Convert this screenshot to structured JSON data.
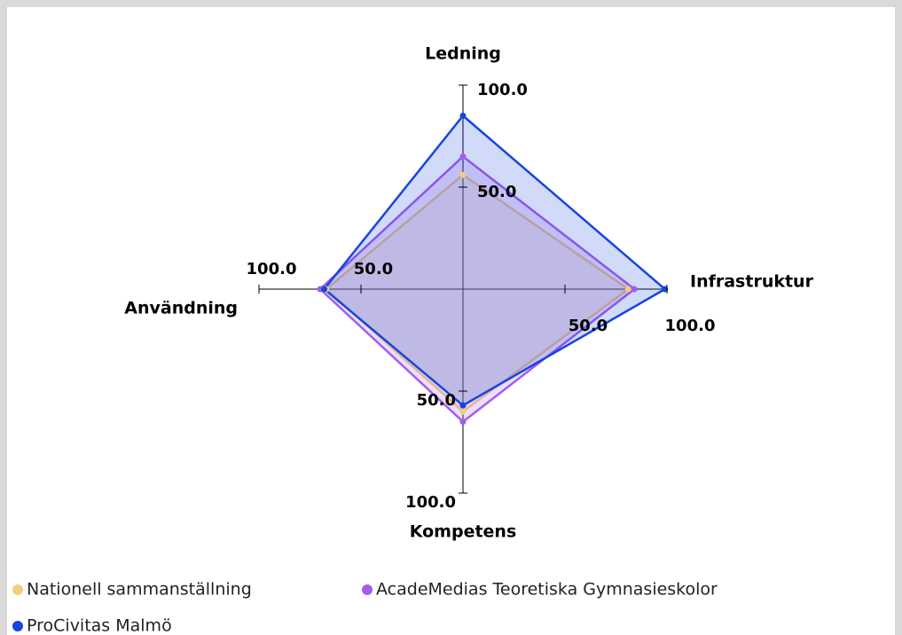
{
  "chart_data": {
    "type": "radar",
    "axes": [
      "Ledning",
      "Infrastruktur",
      "Kompetens",
      "Användning"
    ],
    "rlim": [
      0,
      100
    ],
    "rticks": [
      {
        "value": 50,
        "label": "50.0"
      },
      {
        "value": 100,
        "label": "100.0"
      }
    ],
    "series": [
      {
        "name": "Nationell sammanställning",
        "color": "#f0cf7a",
        "values": [
          56,
          81,
          60,
          67
        ]
      },
      {
        "name": "AcadeMedias Teoretiska Gymnasieskolor",
        "color": "#a25cf2",
        "values": [
          65,
          84,
          65,
          70
        ]
      },
      {
        "name": "ProCivitas Malmö",
        "color": "#1745e0",
        "values": [
          85,
          99,
          57,
          68
        ]
      }
    ]
  }
}
